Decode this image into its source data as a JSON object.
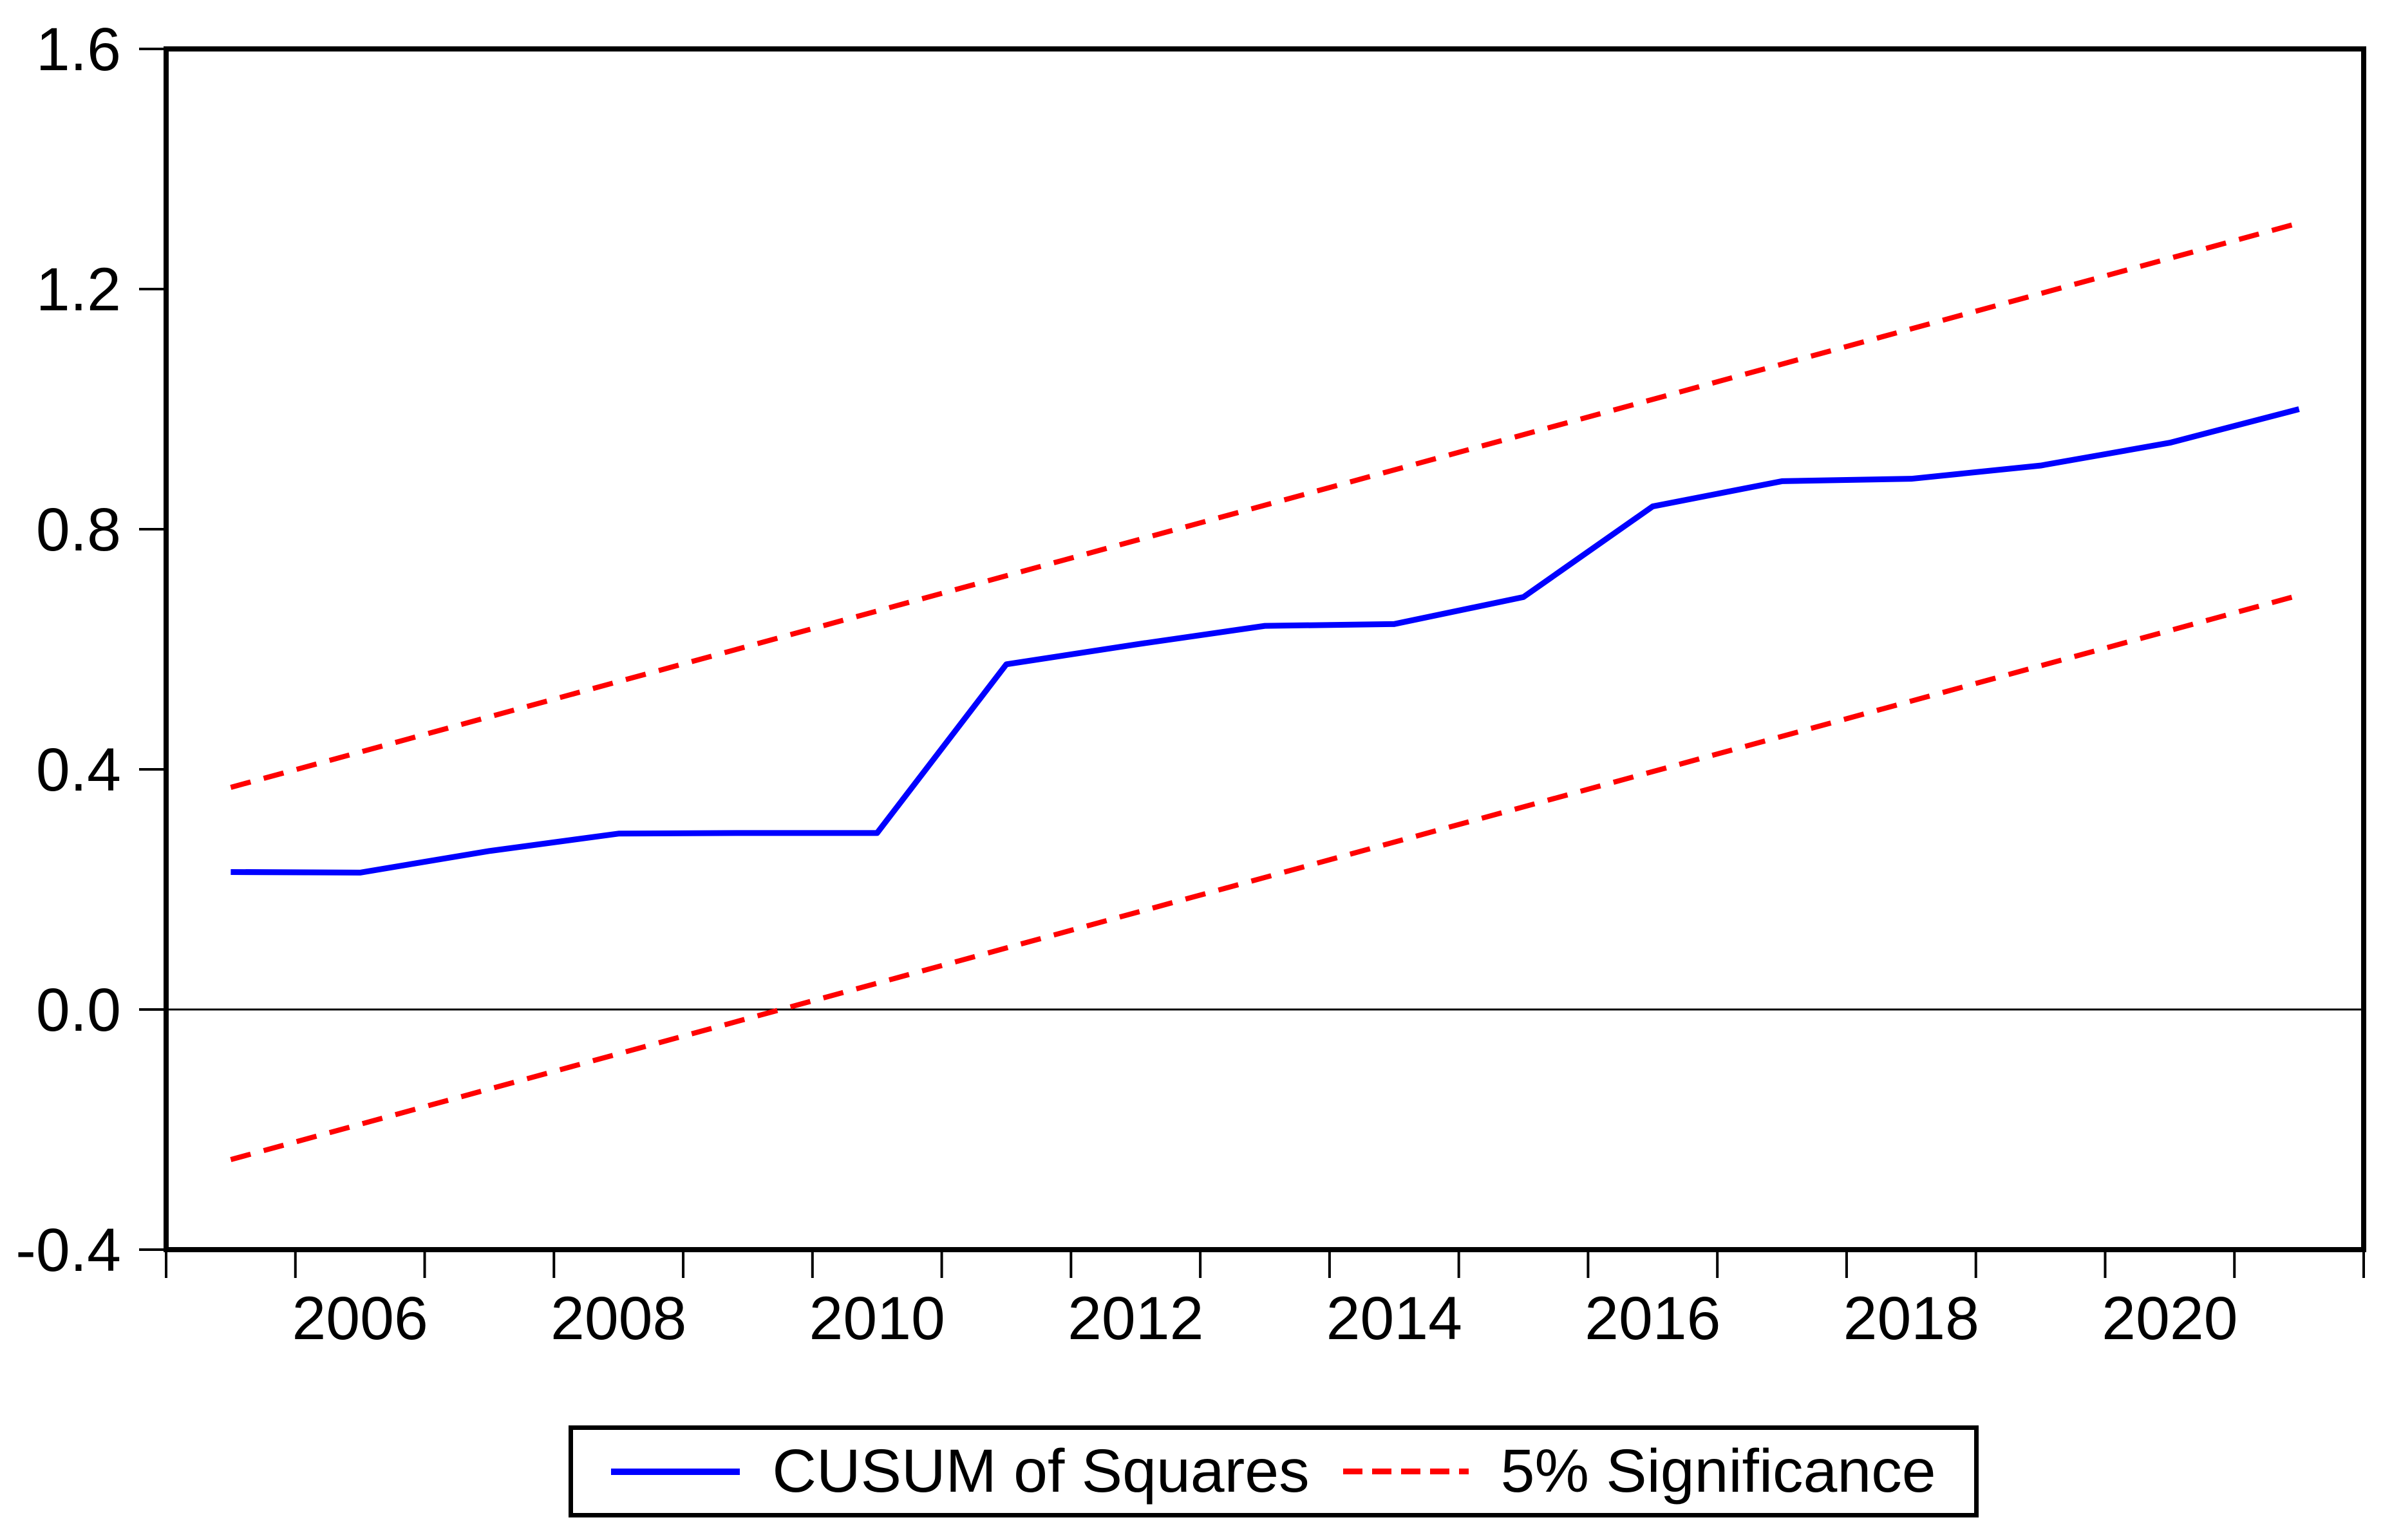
{
  "chart_data": {
    "type": "line",
    "title": "",
    "xlabel": "",
    "ylabel": "",
    "x": [
      2005,
      2006,
      2007,
      2008,
      2009,
      2010,
      2011,
      2012,
      2013,
      2014,
      2015,
      2016,
      2017,
      2018,
      2019,
      2020,
      2021
    ],
    "series": [
      {
        "name": "CUSUM of Squares",
        "color": "#0000ff",
        "style": "solid",
        "width": 9,
        "values": [
          0.229,
          0.228,
          0.264,
          0.293,
          0.294,
          0.294,
          0.575,
          0.608,
          0.639,
          0.642,
          0.687,
          0.838,
          0.88,
          0.884,
          0.906,
          0.944,
          1.0
        ]
      },
      {
        "name": "5% Significance (upper bound)",
        "color": "#ff0000",
        "style": "dashed",
        "width": 8,
        "x": [
          2005,
          2021
        ],
        "values": [
          0.37,
          1.31
        ]
      },
      {
        "name": "5% Significance (lower bound)",
        "color": "#ff0000",
        "style": "dashed",
        "width": 8,
        "x": [
          2005,
          2021
        ],
        "values": [
          -0.25,
          0.69
        ]
      }
    ],
    "ylim": [
      -0.4,
      1.6
    ],
    "y_ticks": [
      -0.4,
      0.0,
      0.4,
      0.8,
      1.2,
      1.6
    ],
    "y_tick_labels": [
      "-0.4",
      "0.0",
      "0.4",
      "0.8",
      "1.2",
      "1.6"
    ],
    "x_tick_label_years": [
      2006,
      2008,
      2010,
      2012,
      2014,
      2016,
      2018,
      2020
    ],
    "x_tick_labels": [
      "2006",
      "2008",
      "2010",
      "2012",
      "2014",
      "2016",
      "2018",
      "2020"
    ],
    "x_minor_ticks": "every year boundary",
    "zero_line": true,
    "grid": false,
    "legend_position": "bottom-center",
    "legend_entries": [
      {
        "label": "CUSUM of Squares",
        "color": "#0000ff",
        "style": "solid"
      },
      {
        "label": "5% Significance",
        "color": "#ff0000",
        "style": "dashed"
      }
    ],
    "colors": {
      "series": "#0000ff",
      "significance_band": "#ff0000",
      "axis": "#000000",
      "background": "#ffffff"
    }
  }
}
